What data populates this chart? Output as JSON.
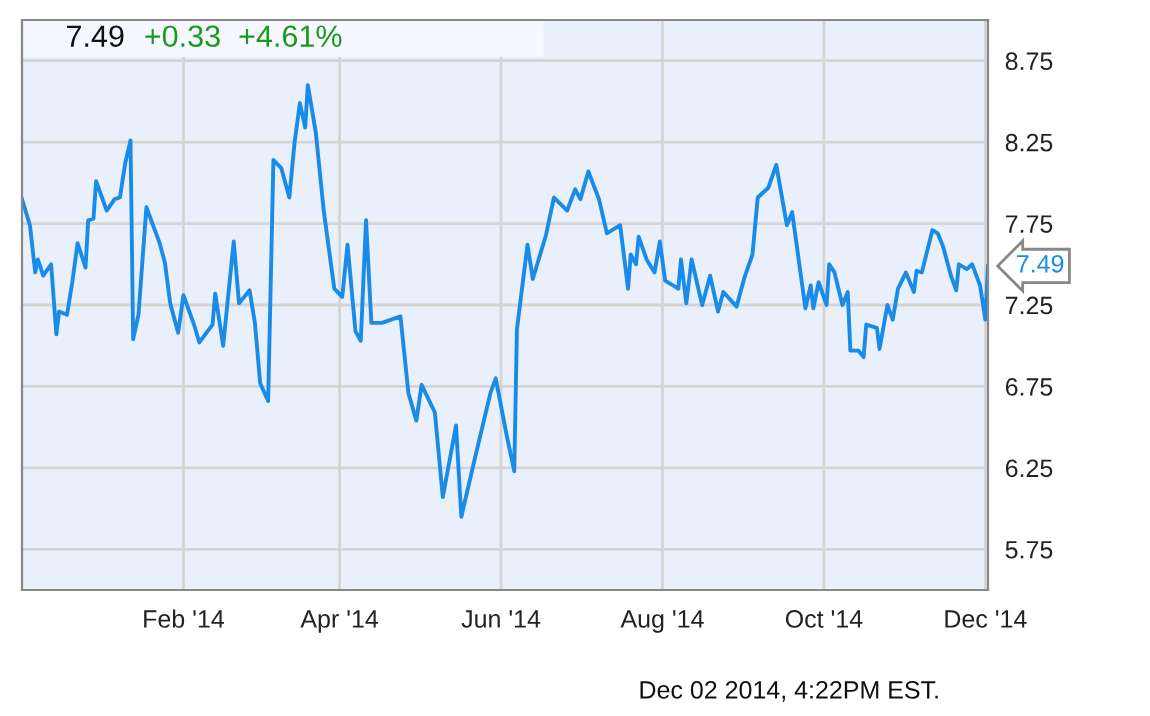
{
  "chart_data": {
    "type": "line",
    "title": "7.49",
    "subtitle": "+0.33  +4.61%",
    "x": [
      "2013-12-02",
      "2013-12-05",
      "2013-12-07",
      "2013-12-08",
      "2013-12-10",
      "2013-12-13",
      "2013-12-15",
      "2013-12-16",
      "2013-12-19",
      "2013-12-21",
      "2013-12-23",
      "2013-12-26",
      "2013-12-27",
      "2013-12-29",
      "2013-12-30",
      "2014-01-03",
      "2014-01-06",
      "2014-01-08",
      "2014-01-10",
      "2014-01-12",
      "2014-01-13",
      "2014-01-15",
      "2014-01-18",
      "2014-01-23",
      "2014-01-25",
      "2014-01-27",
      "2014-01-30",
      "2014-02-01",
      "2014-02-05",
      "2014-02-07",
      "2014-02-12",
      "2014-02-13",
      "2014-02-16",
      "2014-02-20",
      "2014-02-22",
      "2014-02-26",
      "2014-02-28",
      "2014-03-02",
      "2014-03-05",
      "2014-03-07",
      "2014-03-10",
      "2014-03-13",
      "2014-03-15",
      "2014-03-17",
      "2014-03-19",
      "2014-03-20",
      "2014-03-23",
      "2014-03-26",
      "2014-03-30",
      "2014-04-02",
      "2014-04-04",
      "2014-04-07",
      "2014-04-09",
      "2014-04-11",
      "2014-04-13",
      "2014-04-17",
      "2014-04-24",
      "2014-04-27",
      "2014-04-30",
      "2014-05-02",
      "2014-05-07",
      "2014-05-10",
      "2014-05-15",
      "2014-05-17",
      "2014-05-22",
      "2014-05-28",
      "2014-05-30",
      "2014-06-03",
      "2014-06-06",
      "2014-06-07",
      "2014-06-11",
      "2014-06-13",
      "2014-06-18",
      "2014-06-21",
      "2014-06-26",
      "2014-06-29",
      "2014-07-01",
      "2014-07-04",
      "2014-07-08",
      "2014-07-11",
      "2014-07-16",
      "2014-07-19",
      "2014-07-20",
      "2014-07-22",
      "2014-07-23",
      "2014-07-26",
      "2014-07-29",
      "2014-07-31",
      "2014-08-02",
      "2014-08-07",
      "2014-08-08",
      "2014-08-10",
      "2014-08-12",
      "2014-08-16",
      "2014-08-19",
      "2014-08-22",
      "2014-08-24",
      "2014-08-29",
      "2014-09-01",
      "2014-09-04",
      "2014-09-06",
      "2014-09-10",
      "2014-09-13",
      "2014-09-17",
      "2014-09-19",
      "2014-09-24",
      "2014-09-26",
      "2014-09-27",
      "2014-09-29",
      "2014-10-02",
      "2014-10-03",
      "2014-10-05",
      "2014-10-08",
      "2014-10-10",
      "2014-10-11",
      "2014-10-14",
      "2014-10-16",
      "2014-10-17",
      "2014-10-21",
      "2014-10-22",
      "2014-10-25",
      "2014-10-27",
      "2014-10-29",
      "2014-11-01",
      "2014-11-04",
      "2014-11-05",
      "2014-11-07",
      "2014-11-11",
      "2014-11-13",
      "2014-11-15",
      "2014-11-18",
      "2014-11-20",
      "2014-11-21",
      "2014-11-24",
      "2014-11-26",
      "2014-11-29",
      "2014-12-01",
      "2014-12-02"
    ],
    "series": [
      {
        "color": "#1a8be6",
        "values": [
          7.9,
          7.74,
          7.45,
          7.53,
          7.43,
          7.5,
          7.07,
          7.21,
          7.19,
          7.39,
          7.63,
          7.48,
          7.77,
          7.78,
          8.01,
          7.83,
          7.9,
          7.91,
          8.12,
          8.26,
          7.04,
          7.19,
          7.85,
          7.63,
          7.51,
          7.26,
          7.08,
          7.31,
          7.13,
          7.02,
          7.13,
          7.32,
          7.0,
          7.64,
          7.26,
          7.34,
          7.14,
          6.77,
          6.66,
          8.14,
          8.09,
          7.91,
          8.25,
          8.49,
          8.34,
          8.6,
          8.31,
          7.83,
          7.35,
          7.3,
          7.62,
          7.09,
          7.03,
          7.77,
          7.14,
          7.14,
          7.18,
          6.71,
          6.54,
          6.76,
          6.59,
          6.07,
          6.51,
          5.95,
          6.3,
          6.71,
          6.8,
          6.46,
          6.23,
          7.1,
          7.62,
          7.41,
          7.68,
          7.91,
          7.83,
          7.96,
          7.9,
          8.07,
          7.9,
          7.69,
          7.74,
          7.35,
          7.56,
          7.5,
          7.67,
          7.53,
          7.45,
          7.64,
          7.4,
          7.35,
          7.53,
          7.26,
          7.53,
          7.25,
          7.43,
          7.21,
          7.33,
          7.24,
          7.42,
          7.56,
          7.91,
          7.97,
          8.11,
          7.74,
          7.82,
          7.23,
          7.37,
          7.23,
          7.39,
          7.25,
          7.5,
          7.45,
          7.25,
          7.33,
          6.97,
          6.97,
          6.93,
          7.13,
          7.11,
          6.98,
          7.25,
          7.16,
          7.35,
          7.45,
          7.33,
          7.46,
          7.45,
          7.71,
          7.69,
          7.61,
          7.43,
          7.34,
          7.5,
          7.47,
          7.5,
          7.37,
          7.16,
          7.49
        ]
      }
    ],
    "xlim": [
      "2013-12-02",
      "2014-12-02"
    ],
    "xticks": [
      {
        "value": "2014-02-01",
        "label": "Feb '14"
      },
      {
        "value": "2014-04-01",
        "label": "Apr '14"
      },
      {
        "value": "2014-06-01",
        "label": "Jun '14"
      },
      {
        "value": "2014-08-01",
        "label": "Aug '14"
      },
      {
        "value": "2014-10-01",
        "label": "Oct '14"
      },
      {
        "value": "2014-12-01",
        "label": "Dec '14"
      }
    ],
    "ylim": [
      5.5,
      9.0
    ],
    "yticks": [
      {
        "value": 5.75,
        "label": "5.75"
      },
      {
        "value": 6.25,
        "label": "6.25"
      },
      {
        "value": 6.75,
        "label": "6.75"
      },
      {
        "value": 7.25,
        "label": "7.25"
      },
      {
        "value": 7.75,
        "label": "7.75"
      },
      {
        "value": 8.25,
        "label": "8.25"
      },
      {
        "value": 8.75,
        "label": "8.75"
      }
    ],
    "grid": true,
    "legend": false,
    "marker": "none",
    "line_style": "solid",
    "annotations": [
      {
        "text": "7.49",
        "x": "2014-12-02",
        "y": 7.49
      },
      "Dec 02 2014, 4:22PM EST."
    ]
  }
}
